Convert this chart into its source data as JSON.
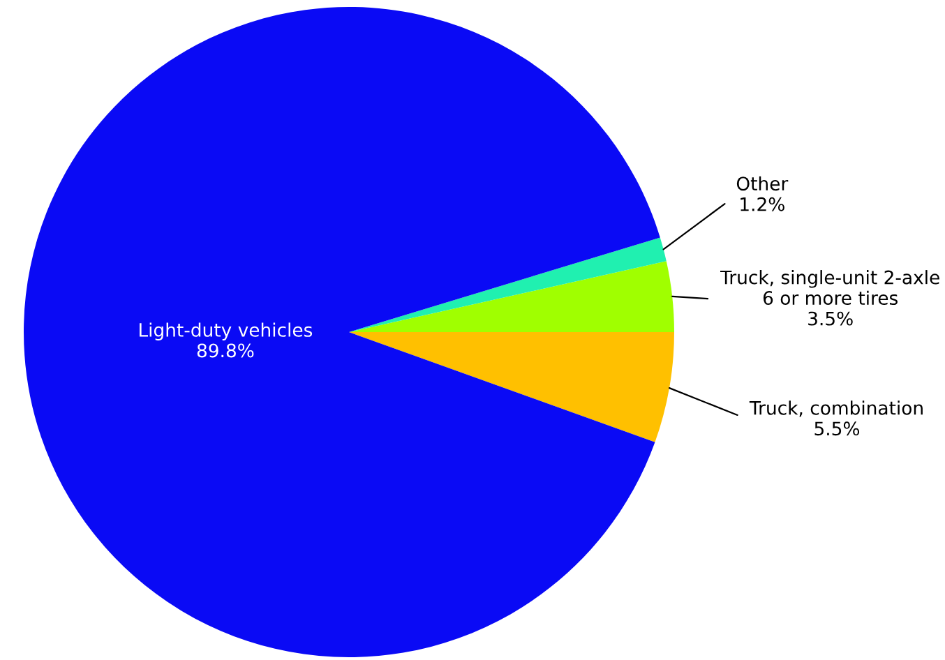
{
  "chart_data": {
    "type": "pie",
    "categories": [
      "Truck, combination\n5.5%",
      "Truck, single-unit 2-axle\n6 or more tires\n3.5%",
      "Other\n1.2%",
      "Light-duty vehicles\n89.8%"
    ],
    "values": [
      5.5,
      3.5,
      1.2,
      89.8
    ],
    "colors": [
      "#ffc000",
      "#a0ff00",
      "#20f0b0",
      "#0a0af5"
    ],
    "legend": false
  }
}
